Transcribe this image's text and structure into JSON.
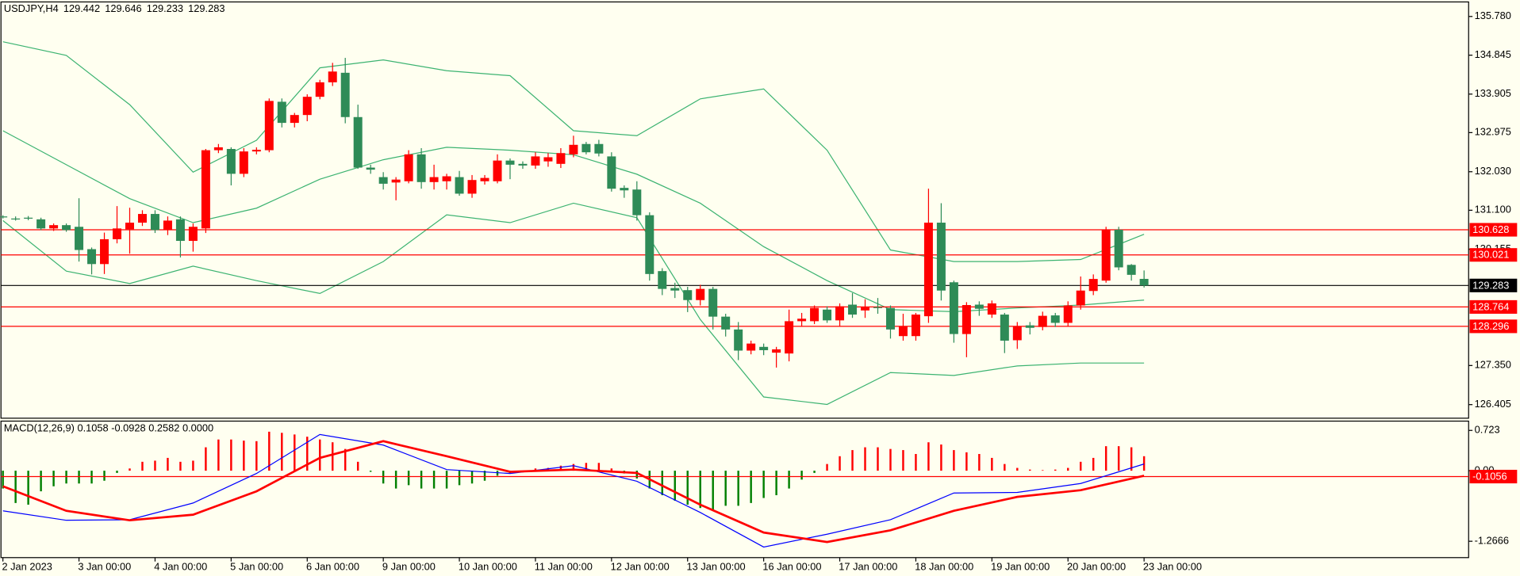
{
  "chart_data": [
    {
      "type": "candlestick",
      "title": "USDJPY,H4",
      "categories": [
        "2 Jan 2023",
        null,
        null,
        null,
        null,
        null,
        "3 Jan 00:00",
        null,
        null,
        null,
        null,
        null,
        "4 Jan 00:00",
        null,
        null,
        null,
        null,
        null,
        "5 Jan 00:00",
        null,
        null,
        null,
        null,
        null,
        "6 Jan 00:00",
        null,
        null,
        null,
        null,
        null,
        "9 Jan 00:00",
        null,
        null,
        null,
        null,
        null,
        "10 Jan 00:00",
        null,
        null,
        null,
        null,
        null,
        "11 Jan 00:00",
        null,
        null,
        null,
        null,
        null,
        "12 Jan 00:00",
        null,
        null,
        null,
        null,
        null,
        "13 Jan 00:00",
        null,
        null,
        null,
        null,
        null,
        "16 Jan 00:00",
        null,
        null,
        null,
        null,
        null,
        "17 Jan 00:00",
        null,
        null,
        null,
        null,
        null,
        "18 Jan 00:00",
        null,
        null,
        null,
        null,
        null,
        "19 Jan 00:00",
        null,
        null,
        null,
        null,
        null,
        "20 Jan 00:00",
        null,
        null,
        null,
        null,
        null,
        "23 Jan 00:00"
      ],
      "open": [
        130.95,
        130.9,
        130.92,
        130.88,
        130.66,
        130.74,
        130.7,
        130.16,
        129.8,
        130.4,
        130.64,
        130.8,
        131.01,
        130.62,
        130.88,
        130.36,
        130.66,
        132.55,
        132.58,
        131.98,
        132.52,
        132.55,
        133.72,
        133.21,
        133.4,
        133.84,
        134.19,
        134.42,
        133.35,
        132.13,
        131.9,
        131.77,
        131.8,
        132.45,
        131.78,
        131.8,
        131.9,
        131.5,
        131.8,
        131.8,
        132.3,
        132.22,
        132.18,
        132.28,
        132.22,
        132.45,
        132.7,
        132.7,
        132.4,
        131.64,
        131.6,
        130.98,
        129.63,
        129.22,
        129.17,
        128.93,
        129.2,
        128.53,
        128.22,
        127.71,
        127.8,
        127.66,
        127.64,
        128.42,
        128.42,
        128.7,
        128.44,
        128.82,
        128.68,
        128.76,
        128.74,
        128.06,
        128.06,
        128.54,
        130.8,
        129.36,
        128.11,
        128.82,
        128.58,
        128.58,
        127.96,
        128.32,
        128.28,
        128.56,
        128.38,
        128.8,
        129.15,
        129.4,
        130.63,
        129.78,
        129.442
      ],
      "high": [
        130.98,
        130.95,
        130.96,
        130.92,
        130.78,
        130.78,
        131.39,
        130.2,
        130.56,
        131.2,
        131.16,
        131.1,
        131.1,
        130.95,
        130.95,
        130.78,
        132.58,
        132.7,
        132.62,
        132.6,
        132.62,
        133.8,
        133.8,
        133.45,
        133.9,
        134.25,
        134.66,
        134.78,
        133.65,
        132.2,
        132.02,
        131.9,
        132.55,
        132.6,
        132.2,
        131.98,
        132.05,
        131.95,
        131.95,
        132.45,
        132.35,
        132.28,
        132.5,
        132.48,
        132.6,
        132.9,
        132.75,
        132.8,
        132.5,
        131.7,
        131.8,
        131.05,
        129.7,
        129.35,
        129.25,
        129.3,
        129.25,
        128.6,
        128.4,
        127.95,
        127.88,
        127.8,
        128.7,
        128.62,
        128.8,
        128.78,
        128.85,
        129.1,
        128.95,
        128.98,
        128.8,
        128.6,
        128.62,
        131.62,
        131.27,
        129.4,
        128.88,
        128.9,
        128.92,
        128.62,
        128.4,
        128.4,
        128.65,
        128.62,
        128.9,
        129.5,
        129.55,
        130.7,
        130.7,
        129.8,
        129.646
      ],
      "low": [
        130.9,
        130.85,
        130.86,
        130.62,
        130.6,
        130.58,
        129.86,
        129.55,
        129.56,
        130.3,
        130.05,
        130.72,
        130.55,
        130.5,
        129.96,
        130.1,
        130.55,
        132.48,
        131.7,
        131.9,
        132.45,
        132.5,
        133.1,
        133.1,
        133.25,
        133.78,
        134.1,
        133.2,
        132.1,
        131.98,
        131.6,
        131.34,
        131.75,
        131.62,
        131.6,
        131.6,
        131.45,
        131.4,
        131.72,
        131.75,
        131.85,
        132.1,
        132.1,
        132.15,
        132.12,
        132.38,
        132.45,
        132.4,
        131.55,
        131.4,
        130.85,
        129.4,
        129.05,
        128.98,
        128.64,
        128.8,
        128.22,
        128.05,
        127.48,
        127.62,
        127.6,
        127.3,
        127.45,
        128.3,
        128.35,
        128.38,
        128.3,
        128.5,
        128.5,
        128.6,
        128.0,
        127.95,
        127.95,
        128.38,
        128.92,
        127.9,
        127.55,
        128.55,
        128.5,
        127.65,
        127.75,
        128.1,
        128.2,
        128.28,
        128.3,
        128.7,
        129.05,
        129.35,
        129.65,
        129.4,
        129.233
      ],
      "close": [
        130.93,
        130.88,
        130.9,
        130.66,
        130.74,
        130.62,
        130.14,
        129.8,
        130.4,
        130.66,
        130.8,
        131.01,
        130.62,
        130.85,
        130.36,
        130.7,
        132.55,
        132.62,
        131.98,
        132.52,
        132.56,
        133.74,
        133.21,
        133.4,
        133.84,
        134.19,
        134.45,
        133.35,
        132.13,
        132.08,
        131.74,
        131.84,
        132.45,
        131.78,
        131.9,
        131.92,
        131.5,
        131.83,
        131.88,
        132.3,
        132.2,
        132.18,
        132.4,
        132.38,
        132.48,
        132.68,
        132.5,
        132.47,
        131.62,
        131.58,
        130.98,
        129.56,
        129.2,
        129.16,
        128.93,
        129.2,
        128.53,
        128.22,
        127.71,
        127.88,
        127.72,
        127.74,
        128.42,
        128.48,
        128.74,
        128.44,
        128.78,
        128.58,
        128.76,
        128.74,
        128.22,
        128.3,
        128.58,
        130.8,
        129.16,
        128.11,
        128.81,
        128.72,
        128.85,
        127.95,
        128.3,
        128.26,
        128.55,
        128.38,
        128.8,
        129.16,
        129.44,
        130.63,
        129.72,
        129.54,
        129.283
      ],
      "up_color": "#ff0000",
      "down_color": "#2e8b57",
      "bands": {
        "color": "#3cb371",
        "x": [
          0,
          5,
          10,
          15,
          20,
          25,
          30,
          35,
          40,
          45,
          50,
          55,
          60,
          65,
          70,
          75,
          80,
          85,
          90
        ],
        "upper": [
          135.17,
          134.84,
          133.65,
          132.02,
          132.79,
          134.54,
          134.73,
          134.47,
          134.35,
          133.02,
          132.9,
          133.79,
          134.03,
          132.55,
          130.14,
          129.86,
          129.86,
          129.91,
          130.52
        ],
        "middle": [
          133.02,
          132.2,
          131.38,
          130.8,
          131.15,
          131.85,
          132.32,
          132.62,
          132.55,
          132.44,
          131.97,
          131.27,
          130.22,
          129.4,
          128.7,
          128.65,
          128.74,
          128.81,
          128.93
        ],
        "lower": [
          130.85,
          129.63,
          129.33,
          129.75,
          129.4,
          129.09,
          129.86,
          130.99,
          130.8,
          131.27,
          130.92,
          128.46,
          126.59,
          126.41,
          127.18,
          127.11,
          127.34,
          127.41,
          127.41
        ]
      },
      "ylim": [
        126.077,
        136.131
      ],
      "yticks": [
        {
          "value": 135.78,
          "label": "135.780"
        },
        134.845,
        133.905,
        132.975,
        {
          "value": 132.03,
          "label": "132.030"
        },
        {
          "value": 131.1,
          "label": "131.100"
        },
        130.155,
        {
          "value": 127.35,
          "label": "127.350"
        },
        126.405
      ],
      "levels": [
        {
          "value": 130.628,
          "color": "#ff0000"
        },
        {
          "value": 130.021,
          "color": "#ff0000"
        },
        {
          "value": 128.764,
          "color": "#ff0000"
        },
        {
          "value": 128.296,
          "color": "#ff0000"
        }
      ],
      "current_color": "#000000"
    },
    {
      "type": "bar",
      "title": "MACD(12,26,9) 0.1058 -0.0928 0.2582 0.0000",
      "values": [
        -0.32,
        -0.58,
        -0.61,
        -0.37,
        -0.28,
        -0.23,
        -0.23,
        -0.23,
        -0.18,
        -0.04,
        0.04,
        0.16,
        0.18,
        0.23,
        0.16,
        0.18,
        0.42,
        0.56,
        0.56,
        0.54,
        0.53,
        0.7,
        0.68,
        0.65,
        0.61,
        0.56,
        0.51,
        0.39,
        0.16,
        -0.02,
        -0.23,
        -0.32,
        -0.26,
        -0.32,
        -0.32,
        -0.32,
        -0.26,
        -0.23,
        -0.18,
        -0.09,
        -0.05,
        -0.02,
        0.04,
        0.05,
        0.09,
        0.12,
        0.14,
        0.14,
        0.04,
        -0.05,
        -0.14,
        -0.32,
        -0.44,
        -0.54,
        -0.61,
        -0.67,
        -0.7,
        -0.63,
        -0.63,
        -0.58,
        -0.49,
        -0.44,
        -0.32,
        -0.16,
        -0.04,
        0.12,
        0.26,
        0.37,
        0.42,
        0.42,
        0.39,
        0.37,
        0.3,
        0.51,
        0.47,
        0.37,
        0.33,
        0.3,
        0.23,
        0.12,
        0.05,
        0.02,
        0.01,
        0.02,
        0.05,
        0.16,
        0.23,
        0.44,
        0.44,
        0.42,
        0.26
      ],
      "up_color": "#ff0000",
      "down_color": "#008000",
      "lines": [
        {
          "color": "#0000ff",
          "width": 1,
          "x": [
            0,
            5,
            10,
            15,
            20,
            25,
            30,
            35,
            40,
            45,
            50,
            55,
            60,
            65,
            70,
            75,
            80,
            85,
            90
          ],
          "values": [
            -0.72,
            -0.89,
            -0.88,
            -0.58,
            -0.05,
            0.65,
            0.46,
            0.02,
            -0.05,
            0.09,
            -0.19,
            -0.75,
            -1.37,
            -1.14,
            -0.88,
            -0.4,
            -0.39,
            -0.23,
            0.12
          ]
        },
        {
          "color": "#ff0000",
          "width": 2.2,
          "x": [
            0,
            5,
            10,
            15,
            20,
            25,
            30,
            35,
            40,
            45,
            50,
            55,
            60,
            65,
            70,
            75,
            80,
            85,
            90
          ],
          "values": [
            -0.28,
            -0.72,
            -0.89,
            -0.79,
            -0.37,
            0.23,
            0.53,
            0.26,
            -0.02,
            0.02,
            -0.04,
            -0.61,
            -1.11,
            -1.28,
            -1.07,
            -0.72,
            -0.47,
            -0.35,
            -0.09
          ]
        }
      ],
      "ylim": [
        -1.56,
        0.89
      ],
      "yticks": [
        0.723,
        {
          "value": 0,
          "label": "0.00"
        },
        -1.2666
      ],
      "levels": [
        {
          "value": -0.1056,
          "color": "#ff0000"
        }
      ]
    }
  ]
}
